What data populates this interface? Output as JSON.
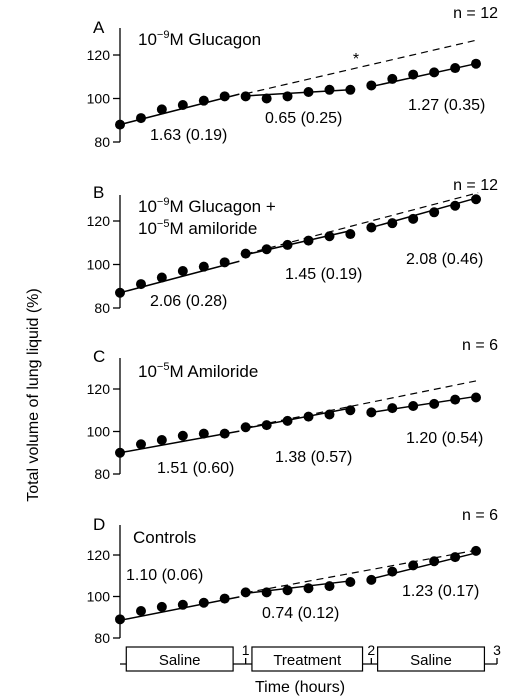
{
  "chart_data": {
    "type": "scatter",
    "ylabel": "Total volume of lung liquid (%)",
    "xlabel": "Time (hours)",
    "x_ticks": [
      "1",
      "2",
      "3"
    ],
    "phase_labels": [
      "Saline",
      "Treatment",
      "Saline"
    ],
    "panels": [
      {
        "label": "A",
        "title_lines": [
          "10",
          "−9",
          "M Glucagon"
        ],
        "title2_lines": [],
        "n_label": "n = 12",
        "marker": "*",
        "ylim": [
          80,
          125
        ],
        "y_ticks": [
          80,
          100,
          120
        ],
        "segments": [
          {
            "x": [
              0.0,
              0.167,
              0.333,
              0.5,
              0.667,
              0.833
            ],
            "y": [
              88,
              91,
              95,
              97,
              99,
              101
            ],
            "fit": [
              [
                0.0,
                88.0
              ],
              [
                0.95,
                102.0
              ]
            ]
          },
          {
            "x": [
              1.0,
              1.167,
              1.333,
              1.5,
              1.667,
              1.833
            ],
            "y": [
              101,
              100,
              101,
              103,
              104,
              104
            ],
            "fit": [
              [
                1.0,
                101.2
              ],
              [
                1.833,
                104.0
              ]
            ]
          },
          {
            "x": [
              2.0,
              2.167,
              2.333,
              2.5,
              2.667,
              2.833
            ],
            "y": [
              106,
              109,
              111,
              112,
              114,
              116
            ],
            "fit": [
              [
                2.0,
                105.5
              ],
              [
                2.833,
                116.0
              ]
            ]
          }
        ],
        "extrapolation": [
          [
            1.0,
            102.2
          ],
          [
            2.85,
            127.0
          ]
        ],
        "rates": [
          "1.63 (0.19)",
          "0.65 (0.25)",
          "1.27 (0.35)"
        ]
      },
      {
        "label": "B",
        "title_lines": [
          "10",
          "−9",
          "M Glucagon +"
        ],
        "title2_lines": [
          "10",
          "−5",
          "M amiloride"
        ],
        "n_label": "n = 12",
        "marker": "",
        "ylim": [
          80,
          131
        ],
        "y_ticks": [
          80,
          100,
          120
        ],
        "segments": [
          {
            "x": [
              0.0,
              0.167,
              0.333,
              0.5,
              0.667,
              0.833
            ],
            "y": [
              87,
              91,
              94,
              97,
              99,
              101
            ],
            "fit": [
              [
                0.0,
                87.0
              ],
              [
                0.95,
                101.5
              ]
            ]
          },
          {
            "x": [
              1.0,
              1.167,
              1.333,
              1.5,
              1.667,
              1.833
            ],
            "y": [
              105,
              107,
              109,
              111,
              113,
              114
            ],
            "fit": [
              [
                1.0,
                104.5
              ],
              [
                1.833,
                115.5
              ]
            ]
          },
          {
            "x": [
              2.0,
              2.167,
              2.333,
              2.5,
              2.667,
              2.833
            ],
            "y": [
              117,
              119,
              121,
              124,
              127,
              130
            ],
            "fit": [
              [
                2.0,
                117.0
              ],
              [
                2.833,
                130.5
              ]
            ]
          }
        ],
        "extrapolation": [
          [
            1.0,
            104.8
          ],
          [
            2.85,
            133.0
          ]
        ],
        "rates": [
          "2.06 (0.28)",
          "1.45 (0.19)",
          "2.08 (0.46)"
        ]
      },
      {
        "label": "C",
        "title_lines": [
          "10",
          "−5",
          "M Amiloride"
        ],
        "title2_lines": [],
        "n_label": "n = 6",
        "marker": "",
        "ylim": [
          80,
          125
        ],
        "y_ticks": [
          80,
          100,
          120
        ],
        "segments": [
          {
            "x": [
              0.0,
              0.167,
              0.333,
              0.5,
              0.667,
              0.833
            ],
            "y": [
              90,
              94,
              96,
              98,
              99,
              99
            ],
            "fit": [
              [
                0.0,
                90.0
              ],
              [
                0.95,
                100.2
              ]
            ]
          },
          {
            "x": [
              1.0,
              1.167,
              1.333,
              1.5,
              1.667,
              1.833
            ],
            "y": [
              102,
              103,
              105,
              107,
              108,
              110
            ],
            "fit": [
              [
                1.0,
                101.5
              ],
              [
                1.833,
                111.0
              ]
            ]
          },
          {
            "x": [
              2.0,
              2.167,
              2.333,
              2.5,
              2.667,
              2.833
            ],
            "y": [
              109,
              111,
              112,
              113,
              115,
              116
            ],
            "fit": [
              [
                2.0,
                109.0
              ],
              [
                2.833,
                116.5
              ]
            ]
          }
        ],
        "extrapolation": [
          [
            1.0,
            101.8
          ],
          [
            2.85,
            124.0
          ]
        ],
        "rates": [
          "1.51 (0.60)",
          "1.38 (0.57)",
          "1.20 (0.54)"
        ]
      },
      {
        "label": "D",
        "title_lines": [
          "Controls"
        ],
        "title2_lines": [],
        "n_label": "n = 6",
        "marker": "",
        "ylim": [
          80,
          126
        ],
        "y_ticks": [
          80,
          100,
          120
        ],
        "segments": [
          {
            "x": [
              0.0,
              0.167,
              0.333,
              0.5,
              0.667,
              0.833
            ],
            "y": [
              89,
              93,
              95,
              96,
              97,
              99
            ],
            "fit": [
              [
                0.0,
                88.5
              ],
              [
                0.95,
                99.8
              ]
            ]
          },
          {
            "x": [
              1.0,
              1.167,
              1.333,
              1.5,
              1.667,
              1.833
            ],
            "y": [
              102,
              102,
              103,
              104,
              105,
              107
            ],
            "fit": [
              [
                1.0,
                101.5
              ],
              [
                1.833,
                107.5
              ]
            ]
          },
          {
            "x": [
              2.0,
              2.167,
              2.333,
              2.5,
              2.667,
              2.833
            ],
            "y": [
              108,
              112,
              115,
              117,
              119,
              122
            ],
            "fit": [
              [
                2.0,
                108.5
              ],
              [
                2.833,
                121.0
              ]
            ]
          }
        ],
        "extrapolation": [
          [
            1.0,
            101.8
          ],
          [
            2.85,
            122.5
          ]
        ],
        "rates": [
          "1.10 (0.06)",
          "0.74 (0.12)",
          "1.23 (0.17)"
        ]
      }
    ]
  }
}
